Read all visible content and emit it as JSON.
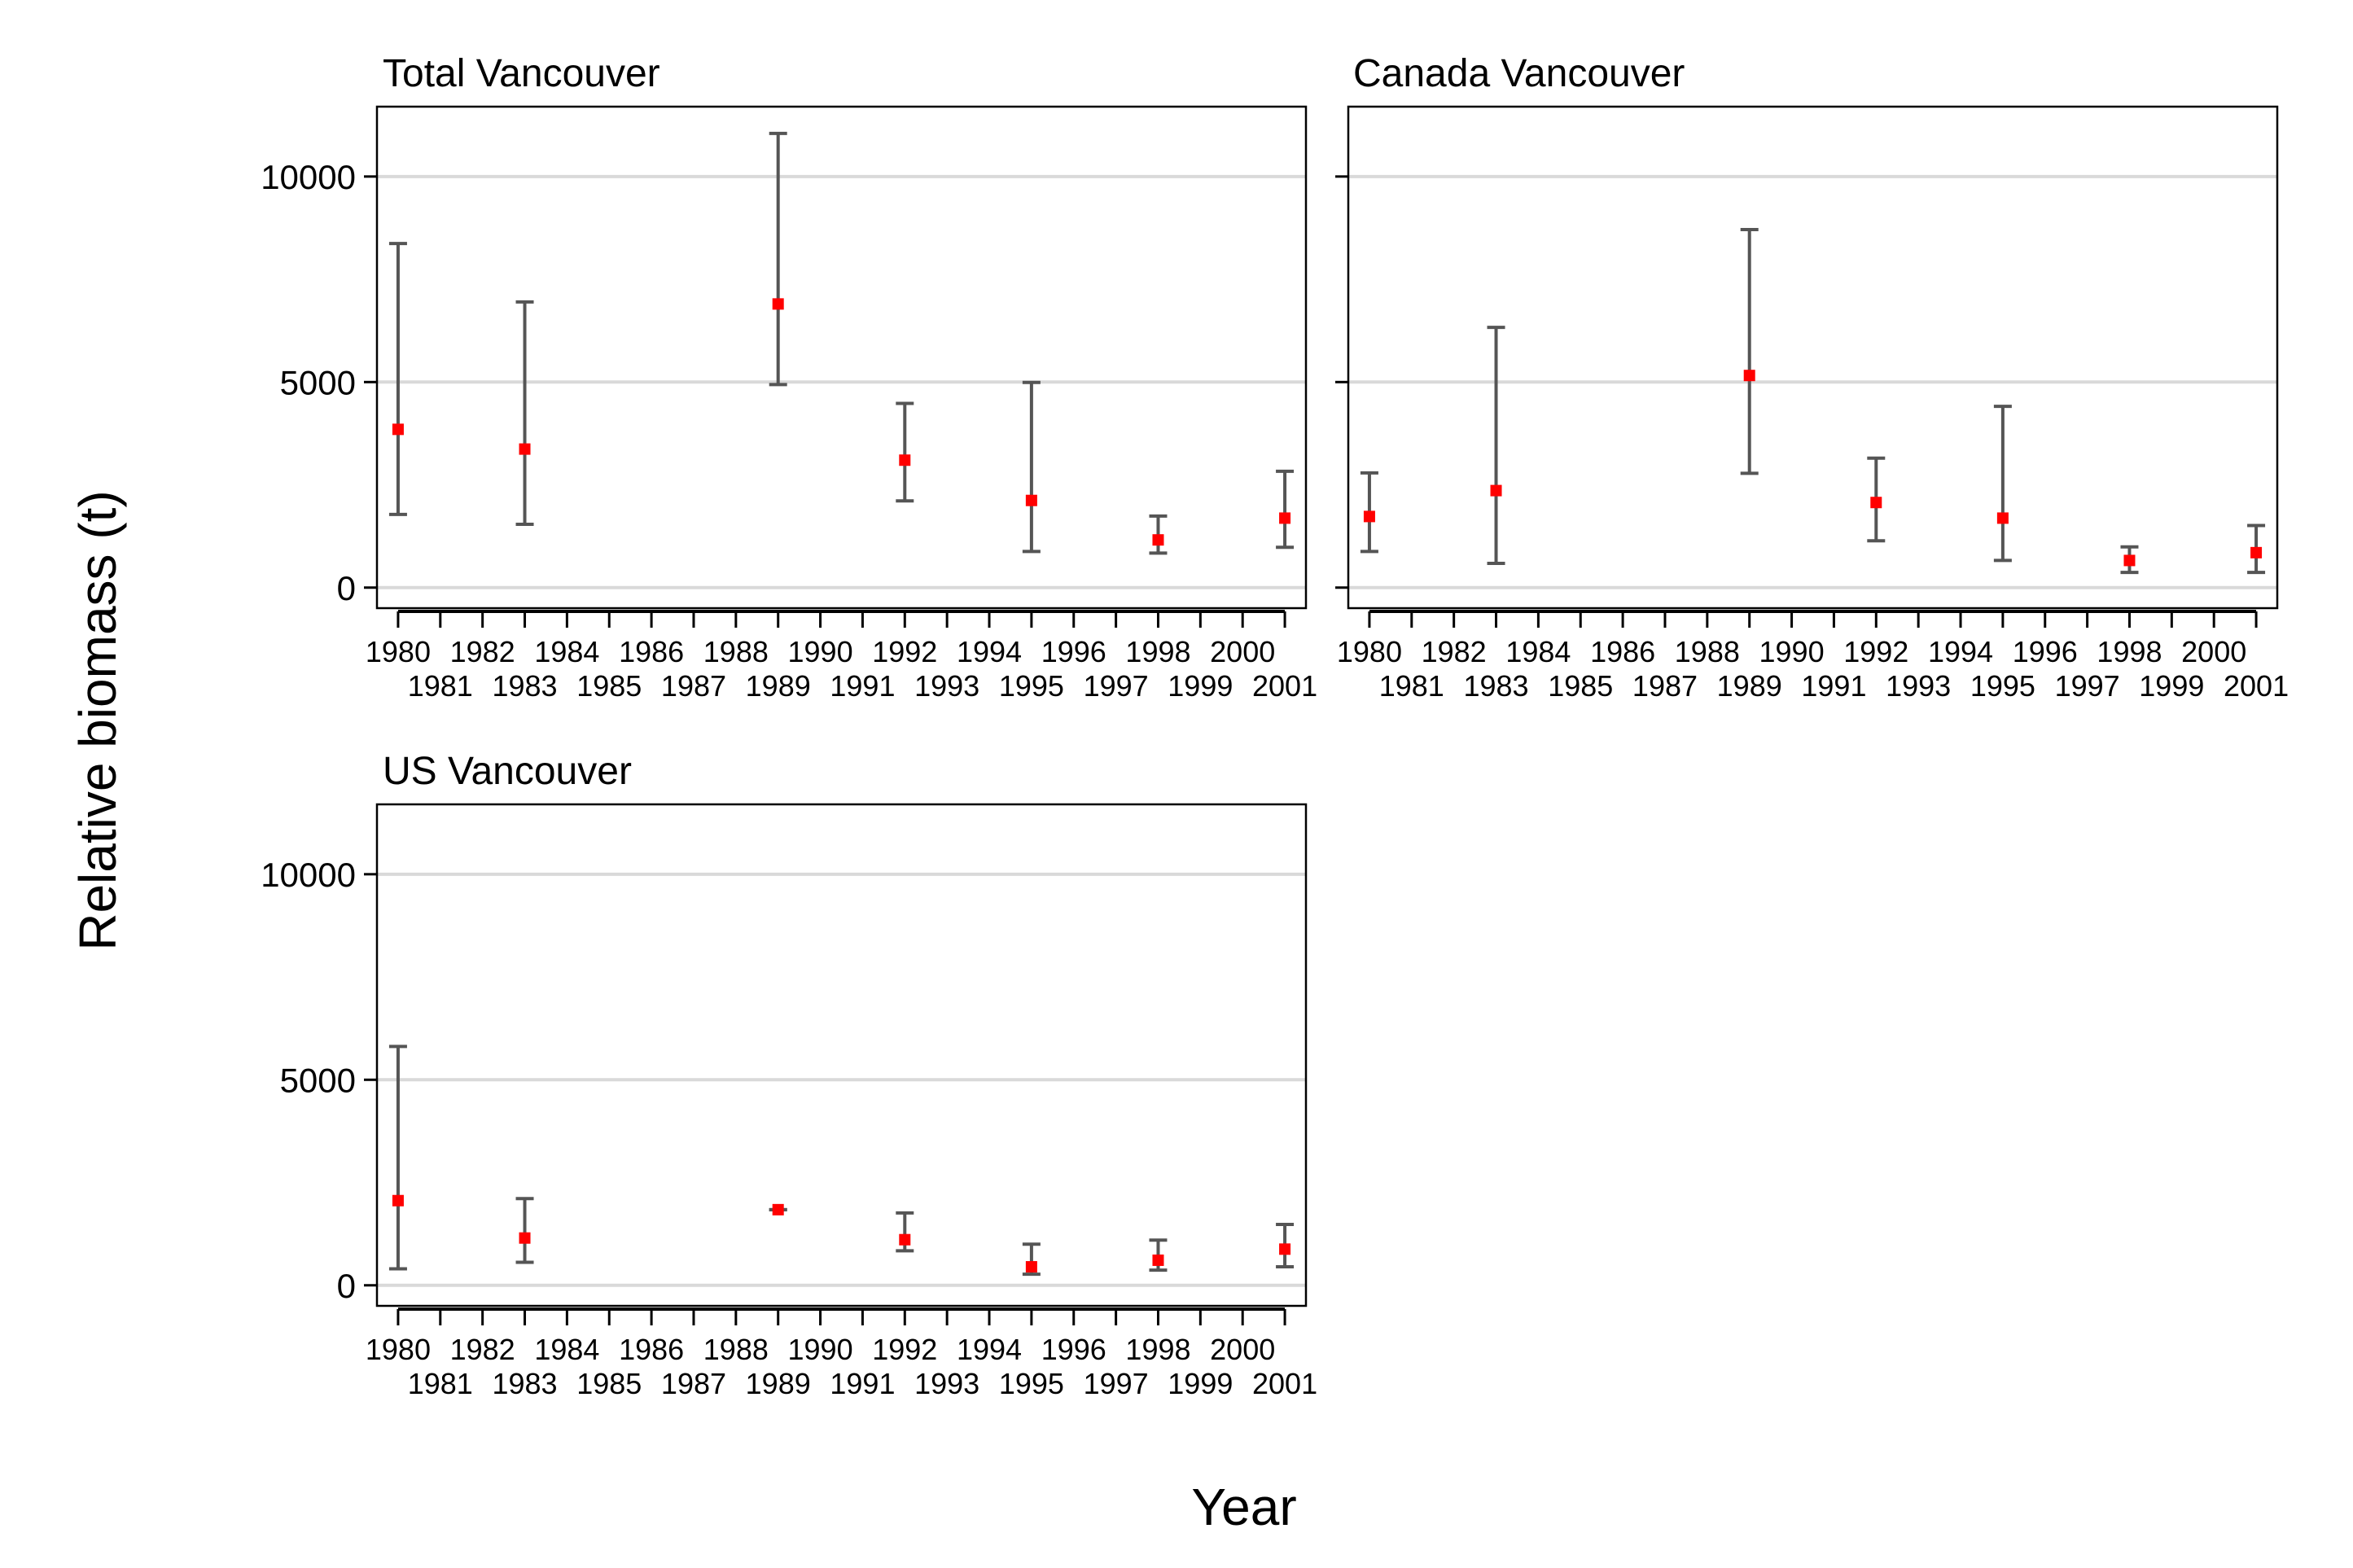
{
  "figure": {
    "ylabel": "Relative biomass (t)",
    "xlabel": "Year"
  },
  "chart_data": [
    {
      "type": "scatter",
      "title": "Total Vancouver",
      "ylim": [
        -500,
        11700
      ],
      "xlim": [
        1979.5,
        2001.5
      ],
      "yticks": [
        0,
        5000,
        10000
      ],
      "xticks": [
        1980,
        1981,
        1982,
        1983,
        1984,
        1985,
        1986,
        1987,
        1988,
        1989,
        1990,
        1991,
        1992,
        1993,
        1994,
        1995,
        1996,
        1997,
        1998,
        1999,
        2000,
        2001
      ],
      "grid": "horizontal",
      "series": [
        {
          "x": [
            1980,
            1983,
            1989,
            1992,
            1995,
            1998,
            2001
          ],
          "y": [
            3850,
            3370,
            6900,
            3100,
            2120,
            1160,
            1690
          ],
          "lower": [
            1780,
            1540,
            4940,
            2110,
            880,
            840,
            980
          ],
          "upper": [
            8370,
            6950,
            11050,
            4480,
            4990,
            1740,
            2830
          ]
        }
      ]
    },
    {
      "type": "scatter",
      "title": "Canada Vancouver",
      "ylim": [
        -500,
        11700
      ],
      "xlim": [
        1979.5,
        2001.5
      ],
      "yticks": [
        0,
        5000,
        10000
      ],
      "xticks": [
        1980,
        1981,
        1982,
        1983,
        1984,
        1985,
        1986,
        1987,
        1988,
        1989,
        1990,
        1991,
        1992,
        1993,
        1994,
        1995,
        1996,
        1997,
        1998,
        1999,
        2000,
        2001
      ],
      "grid": "horizontal",
      "series": [
        {
          "x": [
            1980,
            1983,
            1989,
            1992,
            1995,
            1998,
            2001
          ],
          "y": [
            1730,
            2360,
            5160,
            2070,
            1690,
            660,
            850
          ],
          "lower": [
            880,
            590,
            2780,
            1140,
            660,
            370,
            370
          ],
          "upper": [
            2790,
            6330,
            8710,
            3150,
            4410,
            990,
            1510
          ]
        }
      ]
    },
    {
      "type": "scatter",
      "title": "US Vancouver",
      "ylim": [
        -500,
        11700
      ],
      "xlim": [
        1979.5,
        2001.5
      ],
      "yticks": [
        0,
        5000,
        10000
      ],
      "xticks": [
        1980,
        1981,
        1982,
        1983,
        1984,
        1985,
        1986,
        1987,
        1988,
        1989,
        1990,
        1991,
        1992,
        1993,
        1994,
        1995,
        1996,
        1997,
        1998,
        1999,
        2000,
        2001
      ],
      "grid": "horizontal",
      "series": [
        {
          "x": [
            1980,
            1983,
            1989,
            1992,
            1995,
            1998,
            2001
          ],
          "y": [
            2060,
            1150,
            1840,
            1110,
            450,
            610,
            880
          ],
          "lower": [
            400,
            560,
            1840,
            840,
            270,
            370,
            450
          ],
          "upper": [
            5810,
            2110,
            1840,
            1760,
            1000,
            1100,
            1480
          ]
        }
      ]
    }
  ],
  "colors": {
    "point": "#ff0000",
    "errorbar": "#555555",
    "grid": "#d9d9d9",
    "frame": "#000000"
  }
}
